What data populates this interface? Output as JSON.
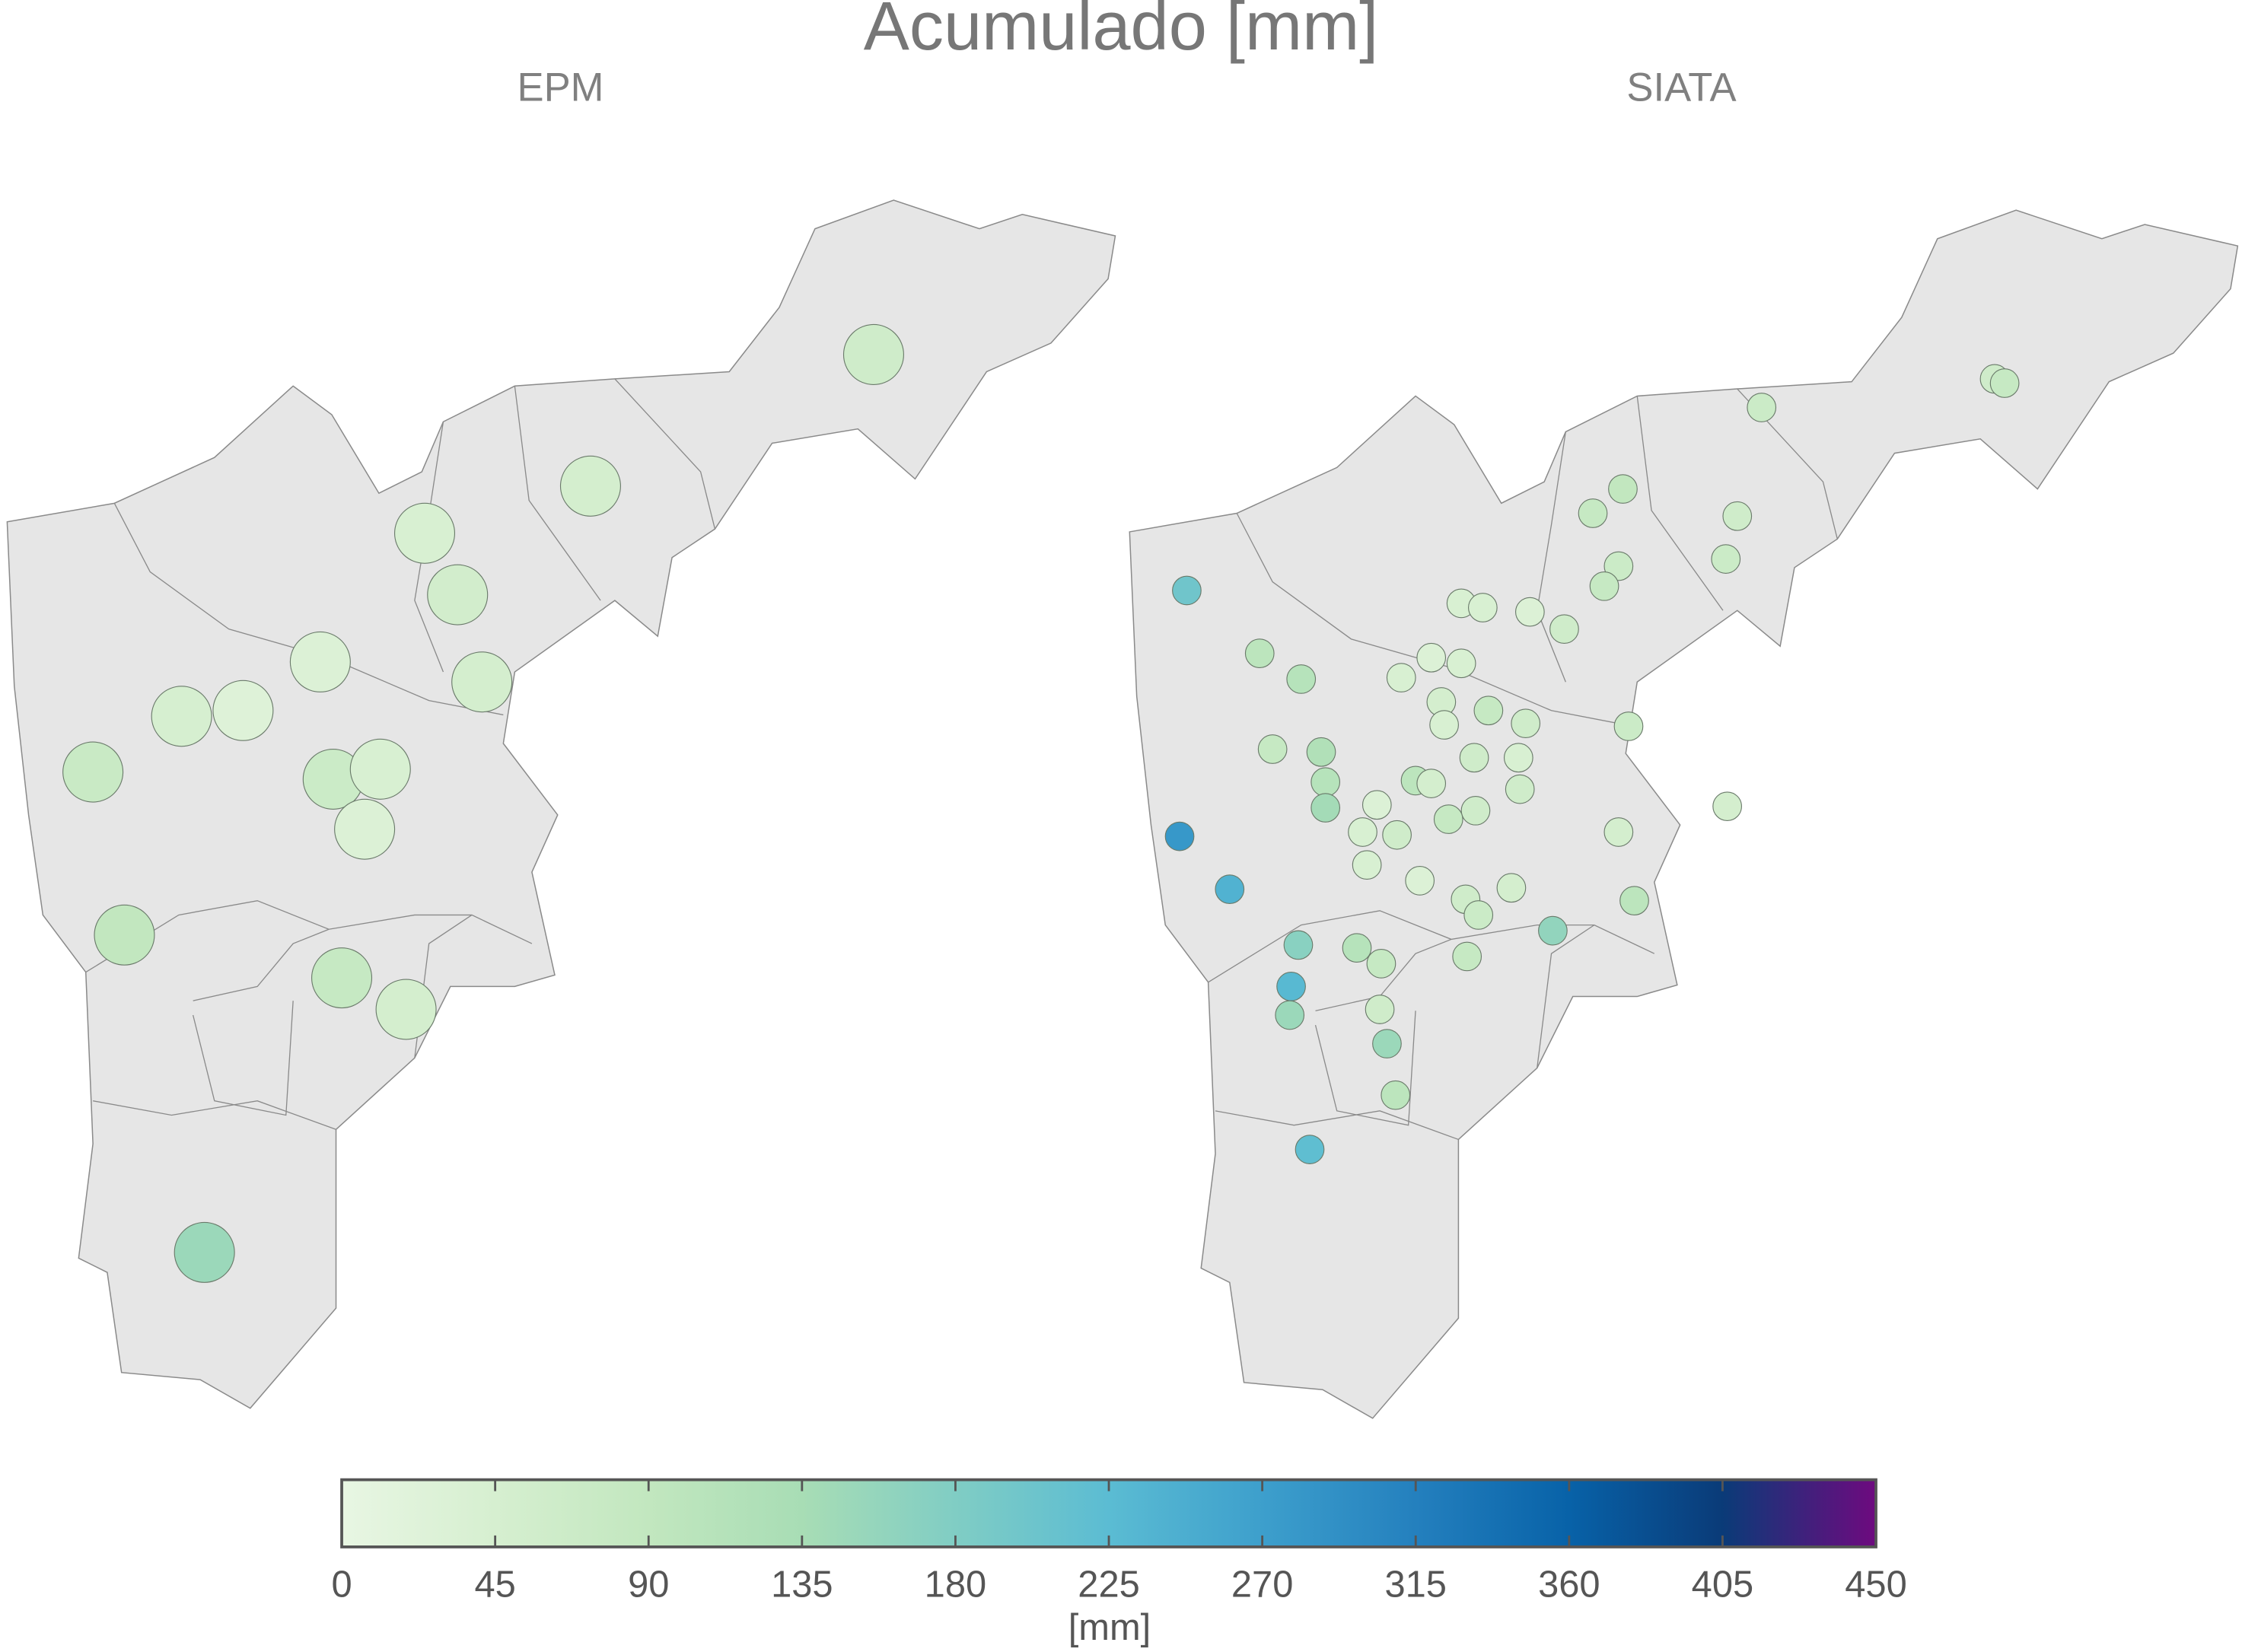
{
  "title": "Acumulado [mm]",
  "maps": [
    {
      "title": "EPM",
      "values": [
        60,
        50,
        40,
        55,
        30,
        50,
        45,
        25,
        75,
        70,
        40,
        30,
        90,
        80,
        50,
        150
      ]
    },
    {
      "title": "SIATA",
      "values": [
        200,
        70,
        60,
        80,
        90,
        80,
        60,
        70,
        80,
        70,
        40,
        40,
        30,
        60,
        100,
        110,
        40,
        30,
        40,
        50,
        80,
        40,
        60,
        70,
        80,
        120,
        110,
        140,
        100,
        50,
        60,
        40,
        60,
        30,
        60,
        80,
        40,
        60,
        50,
        50,
        280,
        40,
        30,
        240,
        60,
        50,
        70,
        100,
        170,
        110,
        80,
        160,
        80,
        230,
        150,
        60,
        150,
        100,
        220
      ]
    }
  ],
  "colorbar": {
    "label": "[mm]",
    "lim": [
      0,
      450
    ],
    "ticks": [
      0,
      45,
      90,
      135,
      180,
      225,
      270,
      315,
      360,
      405,
      450
    ],
    "colors": [
      "#e8f6e3",
      "#d6efd0",
      "#c2e7bf",
      "#a8ddb5",
      "#80cdc4",
      "#5bbcd3",
      "#3d9fcc",
      "#2480be",
      "#0862a8",
      "#0a3b78",
      "#6e0a7f"
    ]
  }
}
